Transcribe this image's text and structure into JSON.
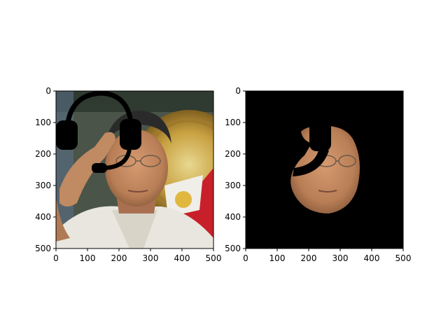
{
  "figure": {
    "background": "#ffffff"
  },
  "chart_data": [
    {
      "type": "image",
      "description_role": "left panel",
      "xlim": [
        0,
        500
      ],
      "ylim": [
        500,
        0
      ],
      "xticks": [
        0,
        100,
        200,
        300,
        400,
        500
      ],
      "yticks": [
        0,
        100,
        200,
        300,
        400,
        500
      ],
      "xtick_labels": [
        "0",
        "100",
        "200",
        "300",
        "400",
        "500"
      ],
      "ytick_labels": [
        "0",
        "100",
        "200",
        "300",
        "400",
        "500"
      ],
      "grid": false,
      "title": "",
      "xlabel": "",
      "ylabel": ""
    },
    {
      "type": "image",
      "description_role": "right panel",
      "xlim": [
        0,
        500
      ],
      "ylim": [
        500,
        0
      ],
      "xticks": [
        0,
        100,
        200,
        300,
        400,
        500
      ],
      "yticks": [
        0,
        100,
        200,
        300,
        400,
        500
      ],
      "xtick_labels": [
        "0",
        "100",
        "200",
        "300",
        "400",
        "500"
      ],
      "ytick_labels": [
        "0",
        "100",
        "200",
        "300",
        "400",
        "500"
      ],
      "grid": false,
      "title": "",
      "xlabel": "",
      "ylabel": ""
    }
  ],
  "colors": {
    "axis": "#000000",
    "mask_background": "#000000",
    "skin": "#c08a62",
    "skin_shadow": "#8a5a3a",
    "shirt": "#e8e6de",
    "seal_gold": "#c8a040",
    "flag_red": "#c8202a",
    "flag_blue": "#203a80",
    "dark_bg": "#404a40",
    "hair": "#2a2a2a",
    "headset": "#000000"
  },
  "icons": {
    "headset": "headset-overlay"
  }
}
